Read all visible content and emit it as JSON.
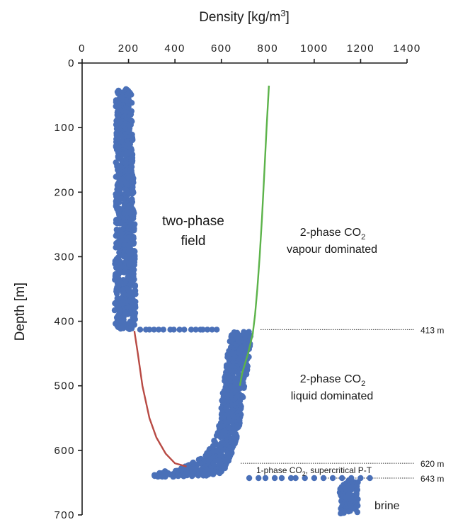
{
  "chart_data": {
    "type": "scatter",
    "title": "",
    "xlabel": "Density [kg/m3]",
    "xlabel_main": "Density [kg/m",
    "xlabel_sup": "3",
    "xlabel_end": "]",
    "ylabel": "Depth [m]",
    "x_axis_position": "top",
    "y_axis_inverted": true,
    "xlim": [
      0,
      1400
    ],
    "ylim": [
      0,
      700
    ],
    "x_ticks": [
      "0",
      "200",
      "400",
      "600",
      "800",
      "1000",
      "1200",
      "1400"
    ],
    "y_ticks": [
      "0",
      "100",
      "200",
      "300",
      "400",
      "500",
      "600",
      "700"
    ],
    "grid": false,
    "series": [
      {
        "kind": "measured-scatter",
        "color": "#4a70b8",
        "segments": [
          {
            "depth_range": [
              40,
              412
            ],
            "density_range": [
              140,
              230
            ]
          },
          {
            "depth": 413,
            "density_points": [
              250,
              275,
              290,
              310,
              330,
              350,
              380,
              395,
              420,
              440,
              470,
              490,
              510,
              520,
              540,
              560,
              580
            ]
          },
          {
            "depth_range": [
              416,
              643
            ],
            "density_profile": [
              [
                416,
                640,
                730
              ],
              [
                440,
                630,
                725
              ],
              [
                470,
                620,
                715
              ],
              [
                500,
                610,
                700
              ],
              [
                530,
                600,
                690
              ],
              [
                560,
                590,
                680
              ],
              [
                590,
                560,
                660
              ],
              [
                610,
                520,
                640
              ],
              [
                625,
                440,
                620
              ],
              [
                635,
                320,
                600
              ],
              [
                640,
                250,
                520
              ]
            ]
          },
          {
            "depth": 643,
            "density_points": [
              720,
              760,
              790,
              830,
              860,
              900,
              920,
              960,
              1000,
              1040,
              1080,
              1120,
              1160,
              1200,
              1240
            ]
          },
          {
            "depth_range": [
              646,
              697
            ],
            "density_range": [
              1110,
              1190
            ]
          }
        ]
      },
      {
        "kind": "curve",
        "color": "#5cb34a",
        "points": [
          [
            805,
            35
          ],
          [
            795,
            100
          ],
          [
            785,
            170
          ],
          [
            775,
            240
          ],
          [
            765,
            300
          ],
          [
            755,
            350
          ],
          [
            745,
            390
          ],
          [
            735,
            420
          ],
          [
            715,
            450
          ],
          [
            690,
            480
          ],
          [
            680,
            500
          ]
        ]
      },
      {
        "kind": "curve",
        "color": "#b84a44",
        "points": [
          [
            225,
            415
          ],
          [
            240,
            450
          ],
          [
            260,
            500
          ],
          [
            290,
            550
          ],
          [
            320,
            580
          ],
          [
            360,
            605
          ],
          [
            400,
            620
          ],
          [
            450,
            625
          ]
        ]
      }
    ],
    "depth_markers": [
      {
        "depth": 413,
        "label": "413 m"
      },
      {
        "depth": 620,
        "label": "620 m"
      },
      {
        "depth": 643,
        "label": "643 m"
      }
    ],
    "annotations": {
      "two_phase_line1": "two-phase",
      "two_phase_line2": "field",
      "vapour_line1_main": "2-phase CO",
      "vapour_line1_sub": "2",
      "vapour_line2": "vapour dominated",
      "liquid_line1_main": "2-phase CO",
      "liquid_line1_sub": "2",
      "liquid_line2": "liquid dominated",
      "supercritical_main": "1-phase CO",
      "supercritical_sub": "2",
      "supercritical_end": ", supercritical P-T",
      "brine": "brine"
    }
  }
}
